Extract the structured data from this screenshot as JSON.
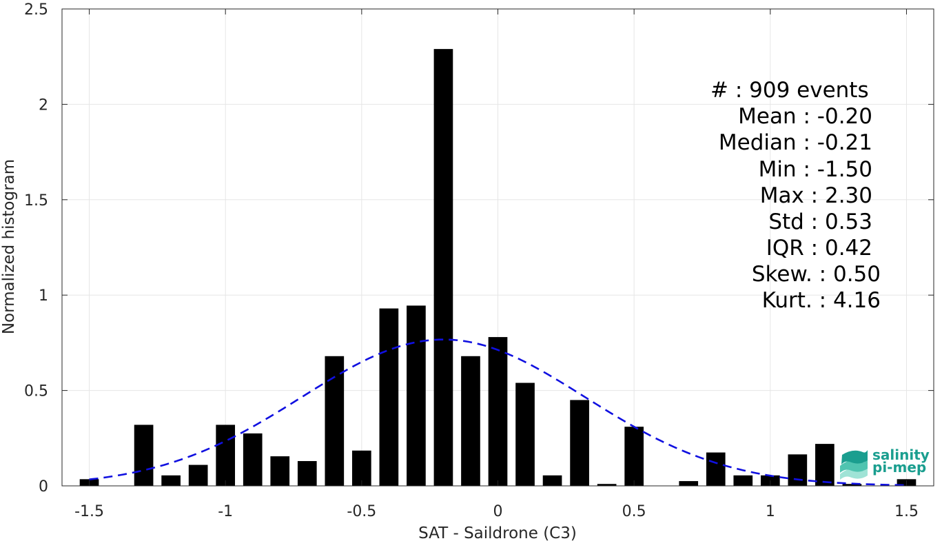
{
  "chart_data": {
    "type": "bar",
    "title": "",
    "xlabel": "SAT - Saildrone (C3)",
    "ylabel": "Normalized histogram",
    "xlim": [
      -1.6,
      1.6
    ],
    "ylim": [
      0,
      2.5
    ],
    "xticks": [
      -1.5,
      -1,
      -0.5,
      0,
      0.5,
      1,
      1.5
    ],
    "xtick_labels": [
      "-1.5",
      "-1",
      "-0.5",
      "0",
      "0.5",
      "1",
      "1.5"
    ],
    "yticks": [
      0,
      0.5,
      1,
      1.5,
      2,
      2.5
    ],
    "ytick_labels": [
      "0",
      "0.5",
      "1",
      "1.5",
      "2",
      "2.5"
    ],
    "grid": true,
    "bar_color": "#000000",
    "bar_width": 0.07,
    "bins": [
      {
        "x": -1.5,
        "value": 0.035
      },
      {
        "x": -1.3,
        "value": 0.32
      },
      {
        "x": -1.2,
        "value": 0.055
      },
      {
        "x": -1.1,
        "value": 0.11
      },
      {
        "x": -1.0,
        "value": 0.32
      },
      {
        "x": -0.9,
        "value": 0.275
      },
      {
        "x": -0.8,
        "value": 0.155
      },
      {
        "x": -0.7,
        "value": 0.13
      },
      {
        "x": -0.6,
        "value": 0.68
      },
      {
        "x": -0.5,
        "value": 0.185
      },
      {
        "x": -0.4,
        "value": 0.93
      },
      {
        "x": -0.3,
        "value": 0.945
      },
      {
        "x": -0.2,
        "value": 2.29
      },
      {
        "x": -0.1,
        "value": 0.68
      },
      {
        "x": 0.0,
        "value": 0.78
      },
      {
        "x": 0.1,
        "value": 0.54
      },
      {
        "x": 0.2,
        "value": 0.055
      },
      {
        "x": 0.3,
        "value": 0.45
      },
      {
        "x": 0.4,
        "value": 0.01
      },
      {
        "x": 0.5,
        "value": 0.31
      },
      {
        "x": 0.6,
        "value": 0.0
      },
      {
        "x": 0.7,
        "value": 0.025
      },
      {
        "x": 0.8,
        "value": 0.175
      },
      {
        "x": 0.9,
        "value": 0.055
      },
      {
        "x": 1.0,
        "value": 0.055
      },
      {
        "x": 1.1,
        "value": 0.165
      },
      {
        "x": 1.2,
        "value": 0.22
      },
      {
        "x": 1.3,
        "value": 0.01
      },
      {
        "x": 1.5,
        "value": 0.035
      }
    ],
    "fit_curve": {
      "type": "normal",
      "mean": -0.2,
      "std": 0.52,
      "color": "#1010e0",
      "style": "dashed",
      "x_range": [
        -1.5,
        1.5
      ]
    }
  },
  "stats": {
    "count": "#  : 909 events",
    "mean": "Mean : -0.20",
    "median": "Median : -0.21",
    "min": "Min : -1.50",
    "max": "Max : 2.30",
    "std": "Std : 0.53",
    "iqr": "IQR : 0.42",
    "skew": "Skew. : 0.50",
    "kurt": "Kurt. : 4.16"
  },
  "logo": {
    "line1": "salinity",
    "line2": "pi-mep",
    "color": "#1a9e8f"
  }
}
